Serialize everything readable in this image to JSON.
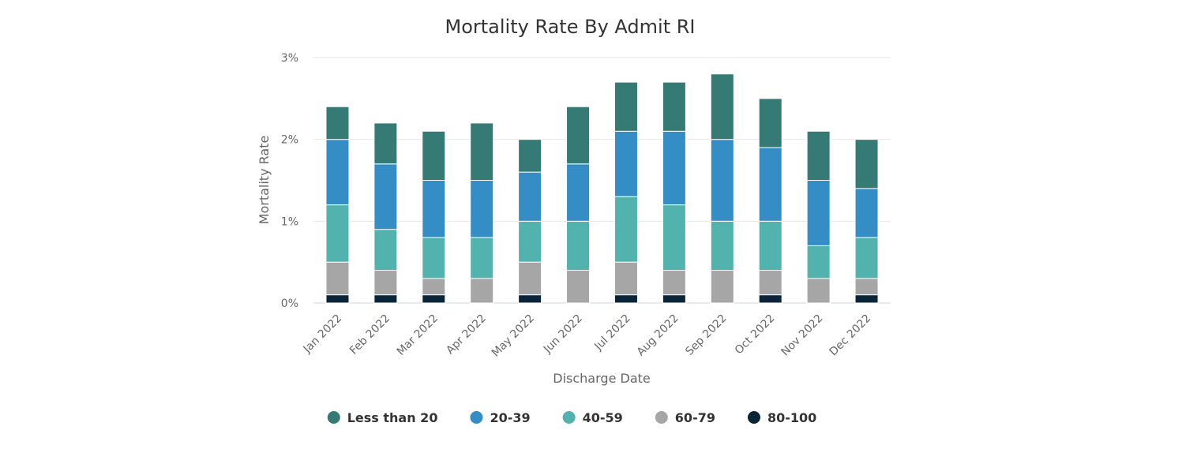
{
  "chart_data": {
    "type": "bar",
    "stacked": true,
    "title": "Mortality Rate By Admit RI",
    "xlabel": "Discharge Date",
    "ylabel": "Mortality Rate",
    "ylim": [
      0,
      3
    ],
    "yticks": [
      "0%",
      "1%",
      "2%",
      "3%"
    ],
    "grid": true,
    "legend_position": "bottom",
    "categories": [
      "Jan 2022",
      "Feb 2022",
      "Mar 2022",
      "Apr 2022",
      "May 2022",
      "Jun 2022",
      "Jul 2022",
      "Aug 2022",
      "Sep 2022",
      "Oct 2022",
      "Nov 2022",
      "Dec 2022"
    ],
    "series": [
      {
        "name": "80-100",
        "color": "#0a2438",
        "values": [
          0.1,
          0.1,
          0.1,
          0.0,
          0.1,
          0.0,
          0.1,
          0.1,
          0.0,
          0.1,
          0.0,
          0.1
        ]
      },
      {
        "name": "60-79",
        "color": "#a6a6a6",
        "values": [
          0.4,
          0.3,
          0.2,
          0.3,
          0.4,
          0.4,
          0.4,
          0.3,
          0.4,
          0.3,
          0.3,
          0.2
        ]
      },
      {
        "name": "40-59",
        "color": "#52b2ae",
        "values": [
          0.7,
          0.5,
          0.5,
          0.5,
          0.5,
          0.6,
          0.8,
          0.8,
          0.6,
          0.6,
          0.4,
          0.5
        ]
      },
      {
        "name": "20-39",
        "color": "#348dc4",
        "values": [
          0.8,
          0.8,
          0.7,
          0.7,
          0.6,
          0.7,
          0.8,
          0.9,
          1.0,
          0.9,
          0.8,
          0.6
        ]
      },
      {
        "name": "Less than 20",
        "color": "#367a75",
        "values": [
          0.4,
          0.5,
          0.6,
          0.7,
          0.4,
          0.7,
          0.6,
          0.6,
          0.8,
          0.6,
          0.6,
          0.6
        ]
      }
    ],
    "legend_order": [
      "Less than 20",
      "20-39",
      "40-59",
      "60-79",
      "80-100"
    ]
  }
}
